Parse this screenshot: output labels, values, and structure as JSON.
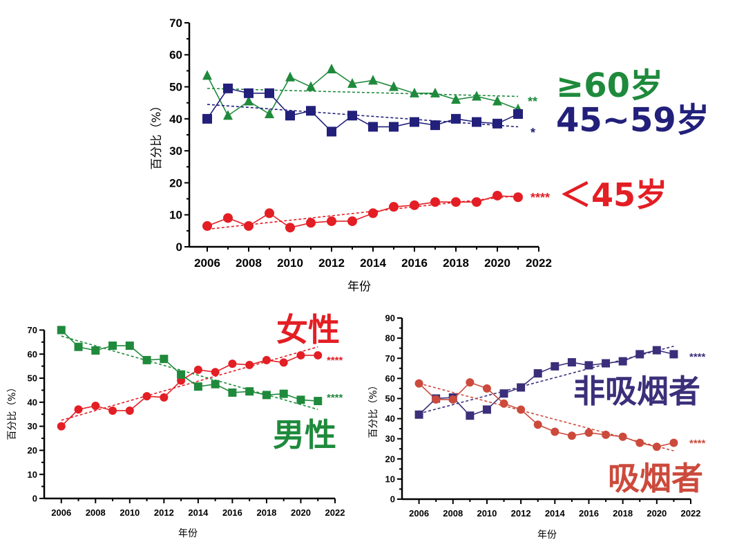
{
  "chart_data": [
    {
      "type": "line",
      "title": "",
      "xlabel": "年份",
      "ylabel": "百分比（%）",
      "xlim": [
        2005,
        2022
      ],
      "ylim": [
        0,
        70
      ],
      "x_ticks": [
        2006,
        2008,
        2010,
        2012,
        2014,
        2016,
        2018,
        2020,
        2022
      ],
      "y_ticks": [
        0,
        10,
        20,
        30,
        40,
        50,
        60,
        70
      ],
      "x": [
        2006,
        2007,
        2008,
        2009,
        2010,
        2011,
        2012,
        2013,
        2014,
        2015,
        2016,
        2017,
        2018,
        2019,
        2020,
        2021
      ],
      "series": [
        {
          "name": "≥60岁",
          "marker": "triangle",
          "color": "#1f8a3c",
          "significance": "**",
          "values": [
            53.5,
            41,
            45.5,
            41.5,
            53,
            50,
            55.5,
            51,
            52,
            50,
            48,
            48,
            46,
            47,
            45.5,
            43
          ],
          "trend": [
            49.5,
            47
          ]
        },
        {
          "name": "45~59岁",
          "marker": "square",
          "color": "#22207a",
          "significance": "*",
          "values": [
            40,
            49.5,
            48,
            48,
            41,
            42.5,
            36,
            41,
            37.5,
            37.5,
            39,
            38,
            40,
            39,
            38.5,
            41.5
          ],
          "trend": [
            44.5,
            37.5
          ]
        },
        {
          "name": "＜45岁",
          "marker": "circle",
          "color": "#e31e24",
          "significance": "****",
          "values": [
            6.5,
            9,
            6.5,
            10.5,
            6,
            7.5,
            8,
            8,
            10.5,
            12.5,
            13,
            14,
            14,
            14,
            16,
            15.5
          ],
          "trend": [
            5.5,
            16
          ]
        }
      ]
    },
    {
      "type": "line",
      "title": "",
      "xlabel": "年份",
      "ylabel": "百分比（%）",
      "xlim": [
        2005,
        2022
      ],
      "ylim": [
        0,
        75
      ],
      "x_ticks": [
        2006,
        2008,
        2010,
        2012,
        2014,
        2016,
        2018,
        2020,
        2022
      ],
      "y_ticks": [
        0,
        10,
        20,
        30,
        40,
        50,
        60,
        70
      ],
      "x": [
        2006,
        2007,
        2008,
        2009,
        2010,
        2011,
        2012,
        2013,
        2014,
        2015,
        2016,
        2017,
        2018,
        2019,
        2020,
        2021
      ],
      "series": [
        {
          "name": "女性",
          "marker": "circle",
          "color": "#e31e24",
          "significance": "****",
          "values": [
            30,
            37,
            38.5,
            36.5,
            36.5,
            42.5,
            42,
            49,
            53.5,
            52.5,
            56,
            55.5,
            57.5,
            56.5,
            59.5,
            59.5
          ],
          "trend": [
            32.5,
            63
          ]
        },
        {
          "name": "男性",
          "marker": "square",
          "color": "#1f8a3c",
          "significance": "****",
          "values": [
            70,
            63,
            61.5,
            63.5,
            63.5,
            57.5,
            58,
            51.5,
            46.5,
            47.5,
            44,
            44.5,
            43,
            43.5,
            41,
            40.5
          ],
          "trend": [
            67.5,
            37
          ]
        }
      ]
    },
    {
      "type": "line",
      "title": "",
      "xlabel": "年份",
      "ylabel": "百分比（%）",
      "xlim": [
        2005,
        2022
      ],
      "ylim": [
        0,
        90
      ],
      "x_ticks": [
        2006,
        2008,
        2010,
        2012,
        2014,
        2016,
        2018,
        2020,
        2022
      ],
      "y_ticks": [
        0,
        10,
        20,
        30,
        40,
        50,
        60,
        70,
        80,
        90
      ],
      "x": [
        2006,
        2007,
        2008,
        2009,
        2010,
        2011,
        2012,
        2013,
        2014,
        2015,
        2016,
        2017,
        2018,
        2019,
        2020,
        2021
      ],
      "series": [
        {
          "name": "非吸烟者",
          "marker": "square",
          "color": "#3b2f7a",
          "significance": "****",
          "values": [
            42,
            50,
            50.5,
            41.5,
            44.5,
            52.5,
            55.5,
            62.5,
            66,
            68,
            66.5,
            67.5,
            68.5,
            72,
            74,
            72
          ],
          "trend": [
            42.5,
            76
          ]
        },
        {
          "name": "吸烟者",
          "marker": "circle",
          "color": "#cc4a3c",
          "significance": "****",
          "values": [
            57.5,
            49.5,
            49.5,
            58,
            55,
            47.5,
            44.5,
            37,
            33.5,
            31.5,
            33,
            32,
            31,
            28,
            26,
            28
          ],
          "trend": [
            57.5,
            24
          ]
        }
      ]
    }
  ]
}
